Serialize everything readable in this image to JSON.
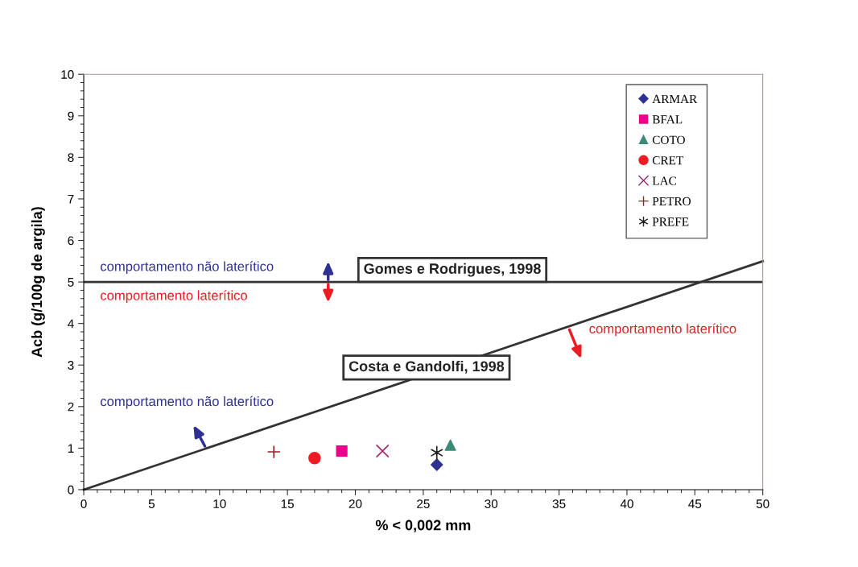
{
  "chart_data": {
    "type": "scatter",
    "xlabel": "% < 0,002 mm",
    "ylabel": "Acb (g/100g de argila)",
    "xlim": [
      0,
      50
    ],
    "ylim": [
      0,
      10
    ],
    "xticks": [
      0,
      5,
      10,
      15,
      20,
      25,
      30,
      35,
      40,
      45,
      50
    ],
    "yticks": [
      0,
      1,
      2,
      3,
      4,
      5,
      6,
      7,
      8,
      9,
      10
    ],
    "grid": false,
    "legend": "top right",
    "series": [
      {
        "name": "ARMAR",
        "color": "#2e3192",
        "marker": "diamond",
        "x": [
          26
        ],
        "values": [
          0.6
        ]
      },
      {
        "name": "BFAL",
        "color": "#ec008c",
        "marker": "square",
        "x": [
          19
        ],
        "values": [
          0.93
        ]
      },
      {
        "name": "COTO",
        "color": "#3a8a7a",
        "marker": "triangle",
        "x": [
          27
        ],
        "values": [
          1.07
        ]
      },
      {
        "name": "CRET",
        "color": "#ed1c24",
        "marker": "circle",
        "x": [
          17
        ],
        "values": [
          0.76
        ]
      },
      {
        "name": "LAC",
        "color": "#9e2a6a",
        "marker": "cross",
        "x": [
          22
        ],
        "values": [
          0.93
        ]
      },
      {
        "name": "PETRO",
        "color": "#9e1f24",
        "marker": "plus",
        "x": [
          14
        ],
        "values": [
          0.91
        ]
      },
      {
        "name": "PREFE",
        "color": "#231f20",
        "x": [
          26
        ],
        "values": [
          0.89
        ]
      },
      {
        "name": "Costa e Gandolfi, 1998",
        "type": "line",
        "color": "#333333",
        "marker": "none",
        "x": [
          0,
          50
        ],
        "values": [
          0,
          5.5
        ]
      }
    ],
    "ref_lines": [
      {
        "axis": "y",
        "value": 5,
        "label": "Gomes e Rodrigues, 1998",
        "color": "#333333"
      }
    ],
    "annotations": [
      "comportamento não laterítico",
      "comportamento laterítico",
      "comportamento laterítico",
      "comportamento não laterítico"
    ]
  }
}
